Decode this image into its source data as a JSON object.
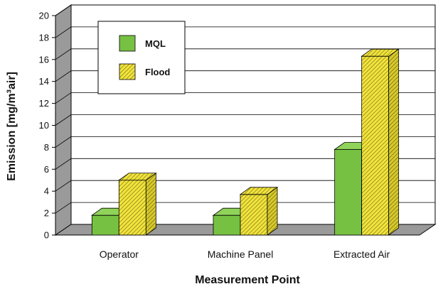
{
  "chart_data": {
    "type": "bar",
    "xlabel": "Measurement Point",
    "ylabel": "Emission [mg/m³air]",
    "ylim": [
      0,
      20
    ],
    "yticks": [
      0,
      2,
      4,
      6,
      8,
      10,
      12,
      14,
      16,
      18,
      20
    ],
    "categories": [
      "Operator",
      "Machine Panel",
      "Extracted Air"
    ],
    "series": [
      {
        "name": "MQL",
        "values": [
          1.8,
          1.8,
          7.8
        ],
        "color": "#77c142",
        "pattern": "solid"
      },
      {
        "name": "Flood",
        "values": [
          5.0,
          3.7,
          16.3
        ],
        "color": "#f2e43a",
        "pattern": "hatch"
      }
    ],
    "legend_position": "top-left",
    "grid": true,
    "style": "3d"
  }
}
